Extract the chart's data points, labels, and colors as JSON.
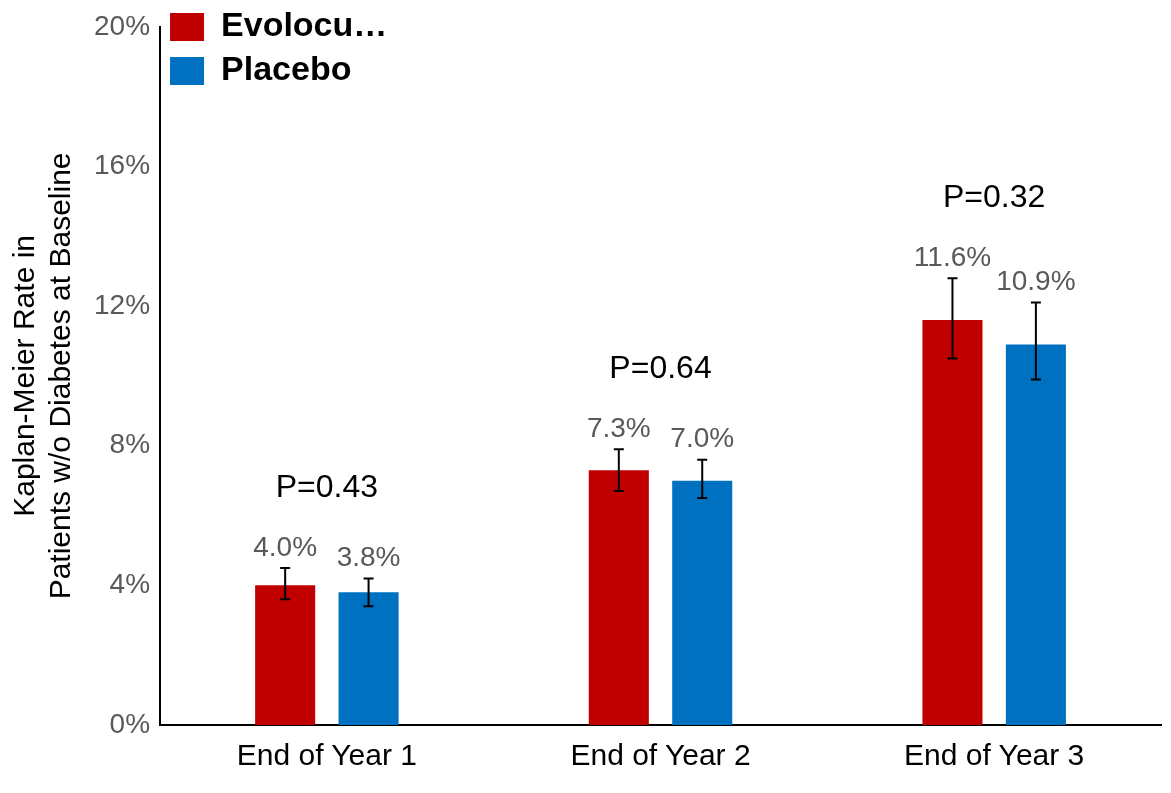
{
  "chart_data": {
    "type": "bar",
    "ylabel": "Kaplan-Meier Rate in\nPatients w/o Diabetes at Baseline",
    "categories": [
      "End of Year 1",
      "End of Year 2",
      "End of Year 3"
    ],
    "series": [
      {
        "name": "Evolocu…",
        "color": "#c00000",
        "values": [
          4.0,
          7.3,
          11.6
        ],
        "value_labels": [
          "4.0%",
          "7.3%",
          "11.6%"
        ],
        "errors": [
          [
            3.6,
            4.5
          ],
          [
            6.7,
            7.9
          ],
          [
            10.5,
            12.8
          ]
        ]
      },
      {
        "name": "Placebo",
        "color": "#0070c0",
        "values": [
          3.8,
          7.0,
          10.9
        ],
        "value_labels": [
          "3.8%",
          "7.0%",
          "10.9%"
        ],
        "errors": [
          [
            3.4,
            4.2
          ],
          [
            6.5,
            7.6
          ],
          [
            9.9,
            12.1
          ]
        ]
      }
    ],
    "ylim": [
      0,
      20
    ],
    "yticks": [
      {
        "value": 0,
        "label": "0%"
      },
      {
        "value": 4,
        "label": "4%"
      },
      {
        "value": 8,
        "label": "8%"
      },
      {
        "value": 12,
        "label": "12%"
      },
      {
        "value": 16,
        "label": "16%"
      },
      {
        "value": 20,
        "label": "20%"
      }
    ],
    "annotations": [
      "P=0.43",
      "P=0.64",
      "P=0.32"
    ],
    "grid": false,
    "legend": "top left"
  }
}
